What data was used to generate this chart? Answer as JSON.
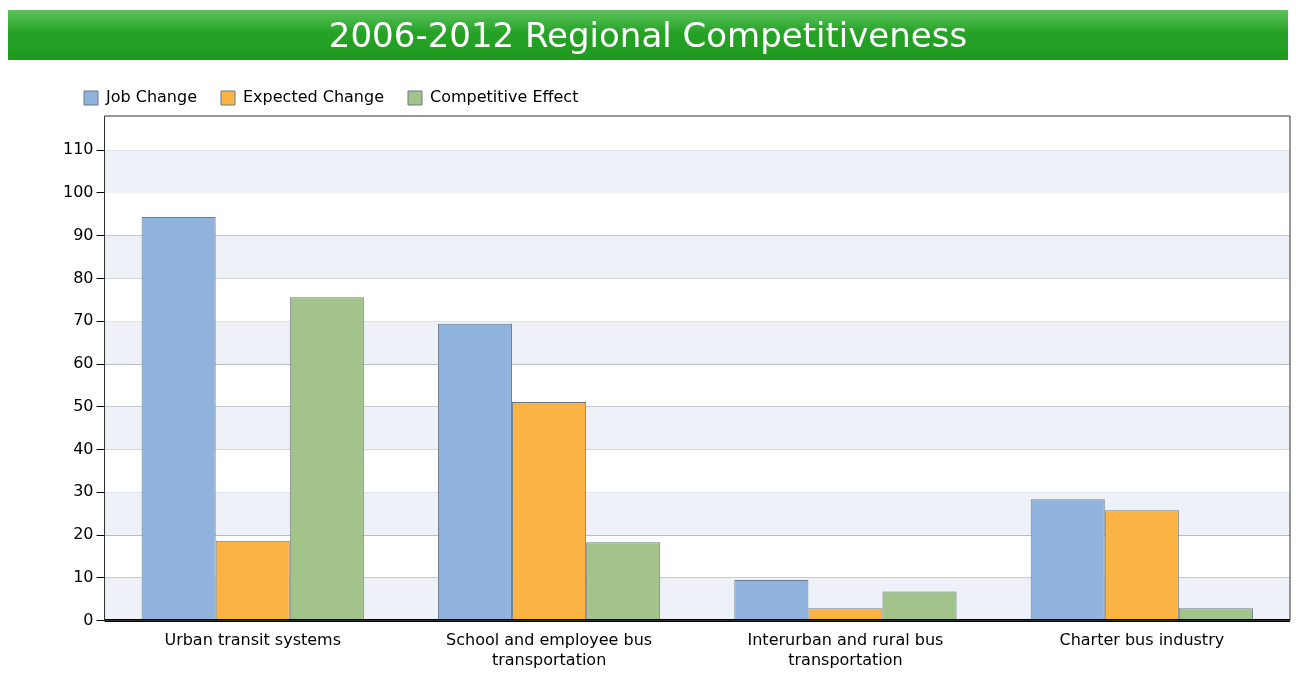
{
  "chart_data": {
    "type": "bar",
    "title": "2006-2012 Regional Competitiveness",
    "categories": [
      "Urban transit systems",
      "School and employee bus transportation",
      "Interurban and rural bus transportation",
      "Charter bus industry"
    ],
    "series": [
      {
        "name": "Job Change",
        "color": "#8fb3dc",
        "values": [
          94.4,
          69.4,
          9.5,
          28.4
        ]
      },
      {
        "name": "Expected Change",
        "color": "#fbb444",
        "values": [
          18.7,
          51.1,
          2.9,
          25.8
        ]
      },
      {
        "name": "Competitive Effect",
        "color": "#a2c48a",
        "values": [
          75.6,
          18.3,
          6.8,
          2.9
        ]
      }
    ],
    "ylim": [
      0,
      118
    ],
    "yticks": [
      0,
      10,
      20,
      30,
      40,
      50,
      60,
      70,
      80,
      90,
      100,
      110
    ],
    "grid": "y",
    "legend": "top left"
  }
}
